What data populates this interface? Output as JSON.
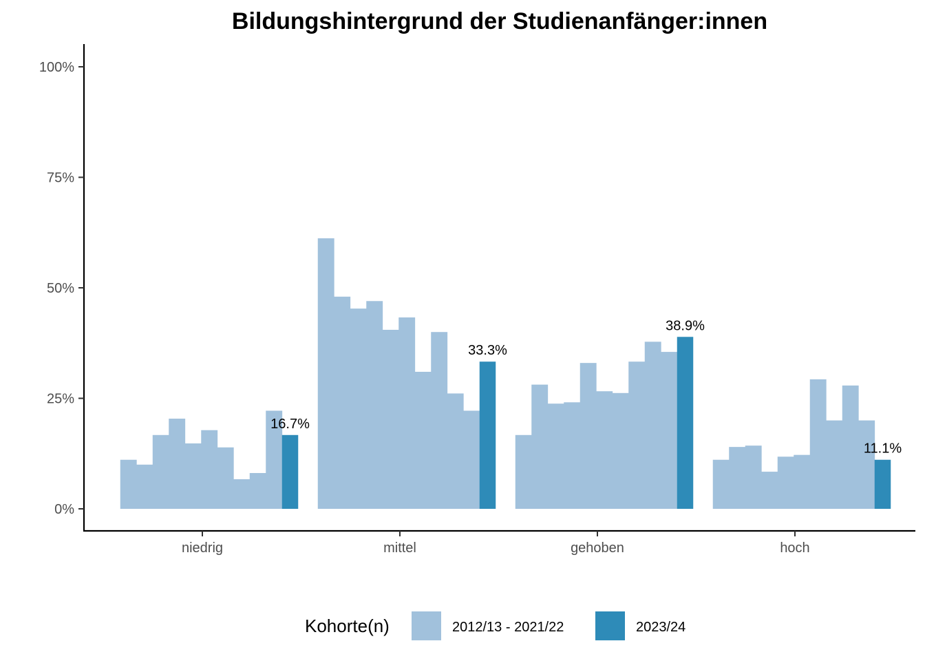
{
  "chart_data": {
    "type": "bar",
    "title": "Bildungshintergrund der Studienanfänger:innen",
    "xlabel": "",
    "ylabel": "",
    "ylim": [
      -0.05,
      1.05
    ],
    "y_ticks": [
      0,
      0.25,
      0.5,
      0.75,
      1.0
    ],
    "y_tick_labels": [
      "0%",
      "25%",
      "50%",
      "75%",
      "100%"
    ],
    "grid": false,
    "categories": [
      "niedrig",
      "mittel",
      "gehoben",
      "hoch"
    ],
    "history_cohorts_per_category": 10,
    "series": [
      {
        "name": "2012/13 - 2021/22",
        "color": "#a1c1dc",
        "values": [
          [
            0.111,
            0.1,
            0.167,
            0.204,
            0.148,
            0.178,
            0.139,
            0.067,
            0.081,
            0.222
          ],
          [
            0.612,
            0.48,
            0.453,
            0.47,
            0.405,
            0.433,
            0.31,
            0.4,
            0.261,
            0.222
          ],
          [
            0.167,
            0.281,
            0.238,
            0.241,
            0.33,
            0.266,
            0.262,
            0.333,
            0.378,
            0.355
          ],
          [
            0.111,
            0.14,
            0.143,
            0.084,
            0.118,
            0.122,
            0.293,
            0.2,
            0.279,
            0.2
          ]
        ]
      },
      {
        "name": "2023/24",
        "color": "#2e8bb8",
        "values": [
          0.167,
          0.333,
          0.389,
          0.111
        ],
        "labels": [
          "16.7%",
          "33.3%",
          "38.9%",
          "11.1%"
        ]
      }
    ],
    "legend": {
      "title": "Kohorte(n)",
      "position": "bottom",
      "entries": [
        "2012/13 - 2021/22",
        "2023/24"
      ]
    }
  }
}
